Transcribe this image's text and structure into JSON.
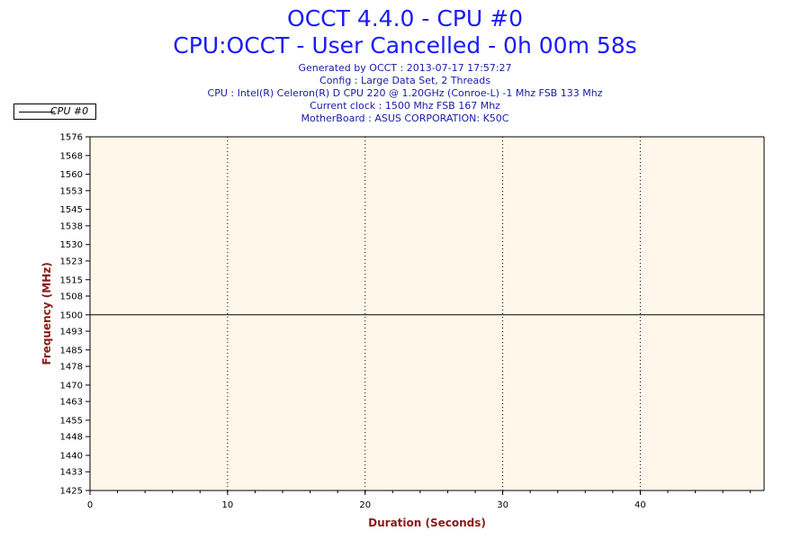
{
  "header": {
    "title": "OCCT 4.4.0 - CPU #0",
    "subtitle": "CPU:OCCT - User Cancelled - 0h 00m 58s",
    "info_lines": [
      "Generated by OCCT : 2013-07-17 17:57:27",
      "Config : Large Data Set, 2 Threads",
      "CPU : Intel(R) Celeron(R) D CPU 220 @ 1.20GHz (Conroe-L) -1 Mhz FSB 133 Mhz",
      "Current clock : 1500 Mhz FSB 167 Mhz",
      "MotherBoard : ASUS CORPORATION: K50C"
    ]
  },
  "legend": {
    "label": "CPU #0"
  },
  "colors": {
    "plot_bg": "#fff8ea",
    "axis_label": "#8b1a1a",
    "series": "#000000",
    "grid": "#000000"
  },
  "chart_data": {
    "type": "line",
    "xlabel": "Duration (Seconds)",
    "ylabel": "Frequency (MHz)",
    "xlim": [
      0,
      49
    ],
    "ylim": [
      1425,
      1576
    ],
    "x_ticks": [
      0,
      10,
      20,
      30,
      40
    ],
    "x_minor_step": 2,
    "y_ticks": [
      "1425",
      "1433",
      "1440",
      "1448",
      "1455",
      "1463",
      "1470",
      "1478",
      "1485",
      "1493",
      "1500",
      "1508",
      "1515",
      "1523",
      "1530",
      "1538",
      "1545",
      "1553",
      "1560",
      "1568",
      "1576"
    ],
    "grid": "vertical dotted at major x ticks",
    "legend_position": "top-left",
    "series": [
      {
        "name": "CPU #0",
        "x": [
          0,
          49
        ],
        "values": [
          1500,
          1500
        ]
      }
    ]
  }
}
